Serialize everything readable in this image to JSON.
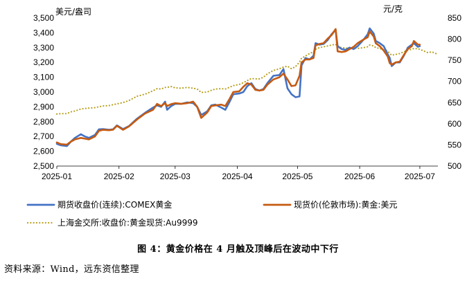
{
  "caption": "图 4：黄金价格在 4 月触及顶峰后在波动中下行",
  "source": "资料来源：Wind，远东资信整理",
  "chart_data": {
    "type": "line",
    "left_unit": "美元/盎司",
    "right_unit": "元/克",
    "x_tick_labels": [
      "2025-01",
      "2025-02",
      "2025-03",
      "2025-04",
      "2025-05",
      "2025-06",
      "2025-07"
    ],
    "x_range": [
      "2025-01-01",
      "2025-07-10"
    ],
    "ylim_left": [
      2500,
      3500
    ],
    "ylim_right": [
      500,
      850
    ],
    "yticks_left": [
      "2,500",
      "2,600",
      "2,700",
      "2,800",
      "2,900",
      "3,000",
      "3,100",
      "3,200",
      "3,300",
      "3,400",
      "3,500"
    ],
    "yticks_right": [
      "500",
      "550",
      "600",
      "650",
      "700",
      "750",
      "800",
      "850"
    ],
    "legend_position": "bottom",
    "series": [
      {
        "name": "期货收盘价(连续):COMEX黄金",
        "axis": "left",
        "color": "#4472C4",
        "style": "solid",
        "points": [
          [
            "2025-01-01",
            2650
          ],
          [
            "2025-01-03",
            2640
          ],
          [
            "2025-01-06",
            2635
          ],
          [
            "2025-01-08",
            2665
          ],
          [
            "2025-01-10",
            2690
          ],
          [
            "2025-01-13",
            2715
          ],
          [
            "2025-01-15",
            2700
          ],
          [
            "2025-01-17",
            2690
          ],
          [
            "2025-01-20",
            2710
          ],
          [
            "2025-01-22",
            2748
          ],
          [
            "2025-01-24",
            2750
          ],
          [
            "2025-01-27",
            2745
          ],
          [
            "2025-01-29",
            2748
          ],
          [
            "2025-01-31",
            2775
          ],
          [
            "2025-02-03",
            2750
          ],
          [
            "2025-02-06",
            2770
          ],
          [
            "2025-02-10",
            2820
          ],
          [
            "2025-02-14",
            2860
          ],
          [
            "2025-02-18",
            2895
          ],
          [
            "2025-02-20",
            2910
          ],
          [
            "2025-02-22",
            2900
          ],
          [
            "2025-02-24",
            2935
          ],
          [
            "2025-02-25",
            2880
          ],
          [
            "2025-02-27",
            2905
          ],
          [
            "2025-03-01",
            2920
          ],
          [
            "2025-03-04",
            2920
          ],
          [
            "2025-03-07",
            2930
          ],
          [
            "2025-03-10",
            2925
          ],
          [
            "2025-03-12",
            2900
          ],
          [
            "2025-03-14",
            2845
          ],
          [
            "2025-03-17",
            2870
          ],
          [
            "2025-03-19",
            2910
          ],
          [
            "2025-03-21",
            2915
          ],
          [
            "2025-03-24",
            2895
          ],
          [
            "2025-03-26",
            2880
          ],
          [
            "2025-03-28",
            2930
          ],
          [
            "2025-03-30",
            2985
          ],
          [
            "2025-04-02",
            2990
          ],
          [
            "2025-04-04",
            3000
          ],
          [
            "2025-04-06",
            3040
          ],
          [
            "2025-04-08",
            3060
          ],
          [
            "2025-04-10",
            3020
          ],
          [
            "2025-04-12",
            3010
          ],
          [
            "2025-04-14",
            3020
          ],
          [
            "2025-04-16",
            3060
          ],
          [
            "2025-04-19",
            3110
          ],
          [
            "2025-04-22",
            3115
          ],
          [
            "2025-04-24",
            3155
          ],
          [
            "2025-04-26",
            3025
          ],
          [
            "2025-04-28",
            2985
          ],
          [
            "2025-04-30",
            2965
          ],
          [
            "2025-05-02",
            2970
          ],
          [
            "2025-05-03",
            3180
          ],
          [
            "2025-05-05",
            3230
          ],
          [
            "2025-05-07",
            3220
          ],
          [
            "2025-05-09",
            3245
          ],
          [
            "2025-05-10",
            3330
          ],
          [
            "2025-05-12",
            3320
          ],
          [
            "2025-05-14",
            3325
          ],
          [
            "2025-05-16",
            3350
          ],
          [
            "2025-05-18",
            3390
          ],
          [
            "2025-05-20",
            3420
          ],
          [
            "2025-05-21",
            3310
          ],
          [
            "2025-05-23",
            3290
          ],
          [
            "2025-05-25",
            3285
          ],
          [
            "2025-05-27",
            3300
          ],
          [
            "2025-05-29",
            3290
          ],
          [
            "2025-05-31",
            3310
          ],
          [
            "2025-06-03",
            3355
          ],
          [
            "2025-06-05",
            3390
          ],
          [
            "2025-06-06",
            3430
          ],
          [
            "2025-06-08",
            3395
          ],
          [
            "2025-06-09",
            3345
          ],
          [
            "2025-06-11",
            3330
          ],
          [
            "2025-06-13",
            3310
          ],
          [
            "2025-06-15",
            3255
          ],
          [
            "2025-06-16",
            3230
          ],
          [
            "2025-06-17",
            3175
          ],
          [
            "2025-06-19",
            3200
          ],
          [
            "2025-06-21",
            3200
          ],
          [
            "2025-06-23",
            3245
          ],
          [
            "2025-06-25",
            3300
          ],
          [
            "2025-06-27",
            3320
          ],
          [
            "2025-06-28",
            3330
          ],
          [
            "2025-06-30",
            3305
          ],
          [
            "2025-07-01",
            3310
          ]
        ]
      },
      {
        "name": "现货价(伦敦市场):黄金:美元",
        "axis": "left",
        "color": "#C55A11",
        "style": "solid",
        "points": [
          [
            "2025-01-01",
            2660
          ],
          [
            "2025-01-03",
            2648
          ],
          [
            "2025-01-06",
            2645
          ],
          [
            "2025-01-08",
            2665
          ],
          [
            "2025-01-10",
            2680
          ],
          [
            "2025-01-13",
            2690
          ],
          [
            "2025-01-15",
            2685
          ],
          [
            "2025-01-17",
            2680
          ],
          [
            "2025-01-20",
            2700
          ],
          [
            "2025-01-22",
            2738
          ],
          [
            "2025-01-24",
            2745
          ],
          [
            "2025-01-27",
            2742
          ],
          [
            "2025-01-29",
            2746
          ],
          [
            "2025-01-31",
            2772
          ],
          [
            "2025-02-03",
            2745
          ],
          [
            "2025-02-06",
            2768
          ],
          [
            "2025-02-10",
            2815
          ],
          [
            "2025-02-14",
            2855
          ],
          [
            "2025-02-18",
            2880
          ],
          [
            "2025-02-20",
            2920
          ],
          [
            "2025-02-22",
            2905
          ],
          [
            "2025-02-24",
            2925
          ],
          [
            "2025-02-25",
            2905
          ],
          [
            "2025-02-27",
            2918
          ],
          [
            "2025-03-01",
            2925
          ],
          [
            "2025-03-04",
            2920
          ],
          [
            "2025-03-07",
            2925
          ],
          [
            "2025-03-10",
            2935
          ],
          [
            "2025-03-12",
            2900
          ],
          [
            "2025-03-14",
            2825
          ],
          [
            "2025-03-17",
            2862
          ],
          [
            "2025-03-19",
            2905
          ],
          [
            "2025-03-21",
            2910
          ],
          [
            "2025-03-24",
            2915
          ],
          [
            "2025-03-26",
            2905
          ],
          [
            "2025-03-28",
            2950
          ],
          [
            "2025-03-30",
            3000
          ],
          [
            "2025-04-02",
            3005
          ],
          [
            "2025-04-04",
            3035
          ],
          [
            "2025-04-06",
            3060
          ],
          [
            "2025-04-08",
            3050
          ],
          [
            "2025-04-10",
            3015
          ],
          [
            "2025-04-12",
            3010
          ],
          [
            "2025-04-14",
            3015
          ],
          [
            "2025-04-16",
            3050
          ],
          [
            "2025-04-19",
            3085
          ],
          [
            "2025-04-22",
            3100
          ],
          [
            "2025-04-24",
            3125
          ],
          [
            "2025-04-26",
            3085
          ],
          [
            "2025-04-28",
            3040
          ],
          [
            "2025-04-30",
            3045
          ],
          [
            "2025-05-02",
            3110
          ],
          [
            "2025-05-03",
            3200
          ],
          [
            "2025-05-05",
            3220
          ],
          [
            "2025-05-07",
            3220
          ],
          [
            "2025-05-09",
            3230
          ],
          [
            "2025-05-10",
            3315
          ],
          [
            "2025-05-12",
            3325
          ],
          [
            "2025-05-14",
            3330
          ],
          [
            "2025-05-16",
            3360
          ],
          [
            "2025-05-18",
            3385
          ],
          [
            "2025-05-20",
            3425
          ],
          [
            "2025-05-21",
            3275
          ],
          [
            "2025-05-23",
            3270
          ],
          [
            "2025-05-25",
            3275
          ],
          [
            "2025-05-27",
            3290
          ],
          [
            "2025-05-29",
            3305
          ],
          [
            "2025-05-31",
            3330
          ],
          [
            "2025-06-03",
            3355
          ],
          [
            "2025-06-05",
            3370
          ],
          [
            "2025-06-06",
            3410
          ],
          [
            "2025-06-08",
            3375
          ],
          [
            "2025-06-09",
            3330
          ],
          [
            "2025-06-11",
            3310
          ],
          [
            "2025-06-13",
            3280
          ],
          [
            "2025-06-15",
            3240
          ],
          [
            "2025-06-16",
            3195
          ],
          [
            "2025-06-17",
            3185
          ],
          [
            "2025-06-19",
            3200
          ],
          [
            "2025-06-21",
            3205
          ],
          [
            "2025-06-23",
            3250
          ],
          [
            "2025-06-25",
            3290
          ],
          [
            "2025-06-27",
            3310
          ],
          [
            "2025-06-28",
            3345
          ],
          [
            "2025-06-30",
            3320
          ],
          [
            "2025-07-01",
            3320
          ]
        ]
      },
      {
        "name": "上海金交所:收盘价:黄金现货:Au9999",
        "axis": "right",
        "color": "#B8A020",
        "style": "dotted",
        "points": [
          [
            "2025-01-01",
            623
          ],
          [
            "2025-01-03",
            624
          ],
          [
            "2025-01-06",
            624
          ],
          [
            "2025-01-08",
            628
          ],
          [
            "2025-01-10",
            630
          ],
          [
            "2025-01-13",
            635
          ],
          [
            "2025-01-15",
            636
          ],
          [
            "2025-01-17",
            637
          ],
          [
            "2025-01-20",
            638
          ],
          [
            "2025-01-22",
            640
          ],
          [
            "2025-01-24",
            642
          ],
          [
            "2025-01-27",
            643
          ],
          [
            "2025-01-29",
            645
          ],
          [
            "2025-01-31",
            647
          ],
          [
            "2025-02-03",
            650
          ],
          [
            "2025-02-06",
            655
          ],
          [
            "2025-02-10",
            665
          ],
          [
            "2025-02-14",
            670
          ],
          [
            "2025-02-18",
            678
          ],
          [
            "2025-02-20",
            683
          ],
          [
            "2025-02-22",
            682
          ],
          [
            "2025-02-24",
            686
          ],
          [
            "2025-02-25",
            686
          ],
          [
            "2025-02-27",
            688
          ],
          [
            "2025-03-01",
            685
          ],
          [
            "2025-03-04",
            684
          ],
          [
            "2025-03-07",
            686
          ],
          [
            "2025-03-10",
            684
          ],
          [
            "2025-03-12",
            682
          ],
          [
            "2025-03-14",
            674
          ],
          [
            "2025-03-17",
            675
          ],
          [
            "2025-03-19",
            679
          ],
          [
            "2025-03-21",
            682
          ],
          [
            "2025-03-24",
            683
          ],
          [
            "2025-03-26",
            682
          ],
          [
            "2025-03-28",
            686
          ],
          [
            "2025-03-30",
            690
          ],
          [
            "2025-04-02",
            693
          ],
          [
            "2025-04-04",
            697
          ],
          [
            "2025-04-06",
            702
          ],
          [
            "2025-04-08",
            707
          ],
          [
            "2025-04-10",
            706
          ],
          [
            "2025-04-12",
            706
          ],
          [
            "2025-04-14",
            710
          ],
          [
            "2025-04-16",
            718
          ],
          [
            "2025-04-19",
            726
          ],
          [
            "2025-04-22",
            730
          ],
          [
            "2025-04-24",
            734
          ],
          [
            "2025-04-26",
            736
          ],
          [
            "2025-04-28",
            730
          ],
          [
            "2025-04-30",
            735
          ],
          [
            "2025-05-02",
            746
          ],
          [
            "2025-05-03",
            755
          ],
          [
            "2025-05-05",
            760
          ],
          [
            "2025-05-07",
            766
          ],
          [
            "2025-05-09",
            770
          ],
          [
            "2025-05-10",
            776
          ],
          [
            "2025-05-12",
            780
          ],
          [
            "2025-05-14",
            782
          ],
          [
            "2025-05-16",
            784
          ],
          [
            "2025-05-18",
            786
          ],
          [
            "2025-05-20",
            788
          ],
          [
            "2025-05-21",
            782
          ],
          [
            "2025-05-23",
            780
          ],
          [
            "2025-05-25",
            779
          ],
          [
            "2025-05-27",
            778
          ],
          [
            "2025-05-29",
            779
          ],
          [
            "2025-05-31",
            778
          ],
          [
            "2025-06-03",
            780
          ],
          [
            "2025-06-05",
            782
          ],
          [
            "2025-06-06",
            786
          ],
          [
            "2025-06-08",
            784
          ],
          [
            "2025-06-09",
            780
          ],
          [
            "2025-06-11",
            778
          ],
          [
            "2025-06-13",
            775
          ],
          [
            "2025-06-15",
            772
          ],
          [
            "2025-06-16",
            766
          ],
          [
            "2025-06-17",
            762
          ],
          [
            "2025-06-19",
            764
          ],
          [
            "2025-06-21",
            766
          ],
          [
            "2025-06-23",
            770
          ],
          [
            "2025-06-25",
            774
          ],
          [
            "2025-06-27",
            776
          ],
          [
            "2025-06-28",
            778
          ],
          [
            "2025-06-30",
            777
          ],
          [
            "2025-07-01",
            776
          ],
          [
            "2025-07-03",
            772
          ],
          [
            "2025-07-05",
            768
          ],
          [
            "2025-07-07",
            770
          ],
          [
            "2025-07-09",
            766
          ]
        ]
      }
    ]
  }
}
